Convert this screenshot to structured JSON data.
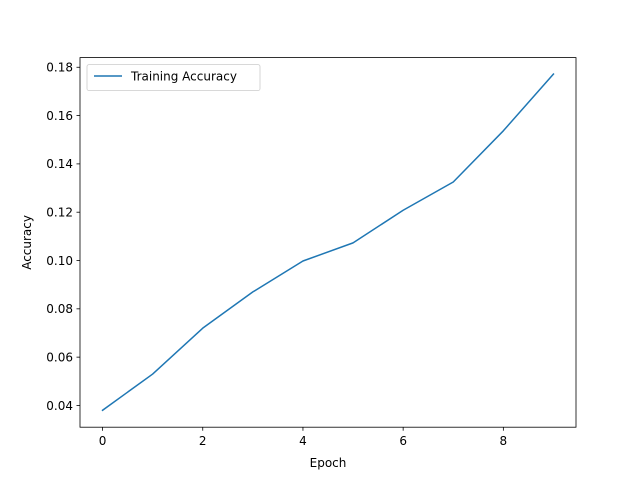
{
  "chart_data": {
    "type": "line",
    "xlabel": "Epoch",
    "ylabel": "Accuracy",
    "xlim": [
      -0.45,
      9.45
    ],
    "ylim": [
      0.031,
      0.184
    ],
    "xticks": [
      0,
      2,
      4,
      6,
      8
    ],
    "xtick_labels": [
      "0",
      "2",
      "4",
      "6",
      "8"
    ],
    "yticks": [
      0.04,
      0.06,
      0.08,
      0.1,
      0.12,
      0.14,
      0.16,
      0.18
    ],
    "ytick_labels": [
      "0.04",
      "0.06",
      "0.08",
      "0.10",
      "0.12",
      "0.14",
      "0.16",
      "0.18"
    ],
    "grid": false,
    "legend_position": "top-left",
    "series": [
      {
        "name": "Training Accuracy",
        "color": "#1f77b4",
        "x": [
          0,
          1,
          2,
          3,
          4,
          5,
          6,
          7,
          8,
          9
        ],
        "y": [
          0.038,
          0.053,
          0.072,
          0.087,
          0.0998,
          0.1073,
          0.1208,
          0.1325,
          0.1537,
          0.1772
        ]
      }
    ]
  }
}
